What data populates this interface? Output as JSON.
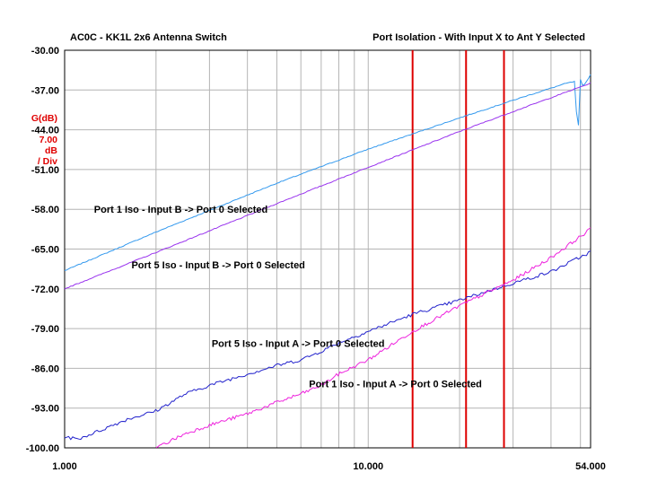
{
  "header": {
    "left_title": "AC0C - KK1L 2x6 Antenna Switch",
    "right_title": "Port Isolation - With Input X to Ant Y Selected"
  },
  "scale": {
    "quantity": "G(dB)",
    "per_div_value": "7.00",
    "per_div_unit": "dB",
    "per_div_suffix": "/ Div"
  },
  "colors": {
    "port1_input_b": "#3399ee",
    "port5_input_b": "#9933ee",
    "port5_input_a": "#2222cc",
    "port1_input_a": "#ee22dd",
    "markers": "#dd0000",
    "grid": "#b4b4b4"
  },
  "chart_data": {
    "type": "line",
    "x_scale": "log",
    "xlim": [
      1.0,
      54.0
    ],
    "ylim": [
      -100.0,
      -30.0
    ],
    "x_ticks": [
      1,
      10,
      54
    ],
    "x_tick_labels": [
      "1.000",
      "10.000",
      "54.000"
    ],
    "y_ticks": [
      -30,
      -37,
      -44,
      -51,
      -58,
      -65,
      -72,
      -79,
      -86,
      -93,
      -100
    ],
    "y_tick_labels": [
      "-30.00",
      "-37.00",
      "-44.00",
      "-51.00",
      "-58.00",
      "-65.00",
      "-72.00",
      "-79.00",
      "-86.00",
      "-93.00",
      "-100.00"
    ],
    "marker_lines_x": [
      14.0,
      21.0,
      28.0
    ],
    "series": [
      {
        "name": "Port 1 Iso - Input B -> Port 0 Selected",
        "color": "#3399ee",
        "x": [
          1.0,
          2.0,
          5.0,
          10.0,
          20.0,
          30.0,
          45.0,
          48.0,
          49.0,
          50.0,
          51.0,
          54.0
        ],
        "y": [
          -68.8,
          -62.0,
          -53.4,
          -47.4,
          -41.9,
          -38.8,
          -35.8,
          -35.5,
          -46.0,
          -35.2,
          -36.5,
          -34.3
        ]
      },
      {
        "name": "Port 5 Iso - Input B -> Port 0 Selected",
        "color": "#9933ee",
        "x": [
          1.0,
          2.0,
          5.0,
          10.0,
          20.0,
          30.0,
          54.0
        ],
        "y": [
          -72.0,
          -65.6,
          -57.0,
          -50.6,
          -44.3,
          -40.8,
          -35.8
        ]
      },
      {
        "name": "Port 5 Iso - Input A -> Port 0 Selected",
        "color": "#2222cc",
        "x": [
          1.0,
          1.1,
          1.3,
          1.6,
          2.0,
          2.5,
          3.0,
          4.0,
          5.0,
          6.0,
          7.0,
          8.0,
          10.0,
          14.0,
          20.0,
          30.0,
          40.0,
          54.0
        ],
        "y": [
          -98.0,
          -98.5,
          -97.0,
          -95.0,
          -93.5,
          -90.5,
          -89.0,
          -87.0,
          -85.5,
          -84.5,
          -83.0,
          -81.5,
          -79.5,
          -76.5,
          -74.0,
          -71.0,
          -69.0,
          -65.5
        ]
      },
      {
        "name": "Port 1 Iso - Input A -> Port 0 Selected",
        "color": "#ee22dd",
        "x": [
          2.0,
          2.5,
          3.0,
          4.0,
          5.0,
          6.0,
          7.0,
          8.0,
          10.0,
          14.0,
          20.0,
          25.0,
          30.0,
          40.0,
          54.0
        ],
        "y": [
          -100.0,
          -97.5,
          -96.0,
          -94.0,
          -92.0,
          -90.5,
          -89.0,
          -87.0,
          -84.5,
          -79.5,
          -75.0,
          -72.5,
          -70.5,
          -66.5,
          -61.5
        ]
      }
    ],
    "annotations": [
      {
        "text": "Port 1 Iso - Input B -> Port 0 Selected",
        "x": 1.25,
        "y": -58.6
      },
      {
        "text": "Port 5 Iso - Input B -> Port 0 Selected",
        "x": 1.66,
        "y": -68.4
      },
      {
        "text": "Port 5 Iso - Input A -> Port 0 Selected",
        "x": 3.05,
        "y": -82.2
      },
      {
        "text": "Port 1 Iso - Input A -> Port 0 Selected",
        "x": 6.38,
        "y": -89.3
      }
    ]
  }
}
